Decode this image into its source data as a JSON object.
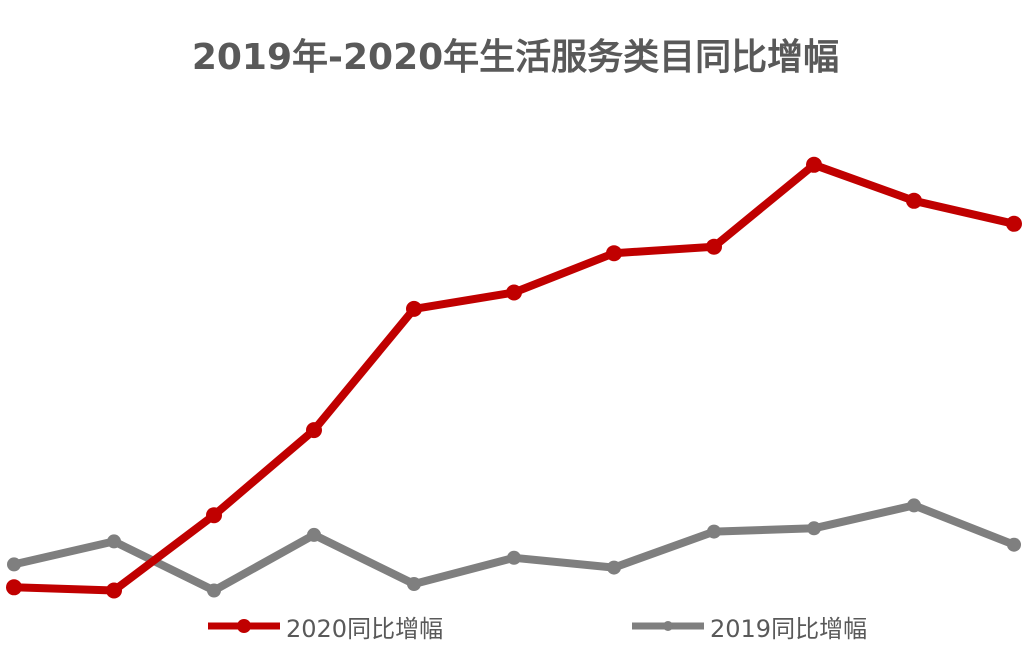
{
  "chart_data": {
    "type": "line",
    "title": "2019年-2020年生活服务类目同比增幅",
    "xlabel": "",
    "ylabel": "",
    "grid": false,
    "legend_position": "bottom",
    "x": [
      1,
      2,
      3,
      4,
      5,
      6,
      7,
      8,
      9,
      10,
      11
    ],
    "ylim": [
      0,
      100
    ],
    "series": [
      {
        "name": "2020同比增幅",
        "color": "#c00000",
        "values": [
          19.5,
          19.0,
          30.5,
          43.5,
          62.0,
          64.5,
          70.5,
          71.5,
          84.0,
          78.5,
          75.0
        ]
      },
      {
        "name": "2019同比增幅",
        "color": "#7f7f7f",
        "values": [
          23.0,
          26.5,
          19.0,
          27.5,
          20.0,
          24.0,
          22.5,
          28.0,
          28.5,
          32.0,
          26.0
        ]
      }
    ]
  }
}
